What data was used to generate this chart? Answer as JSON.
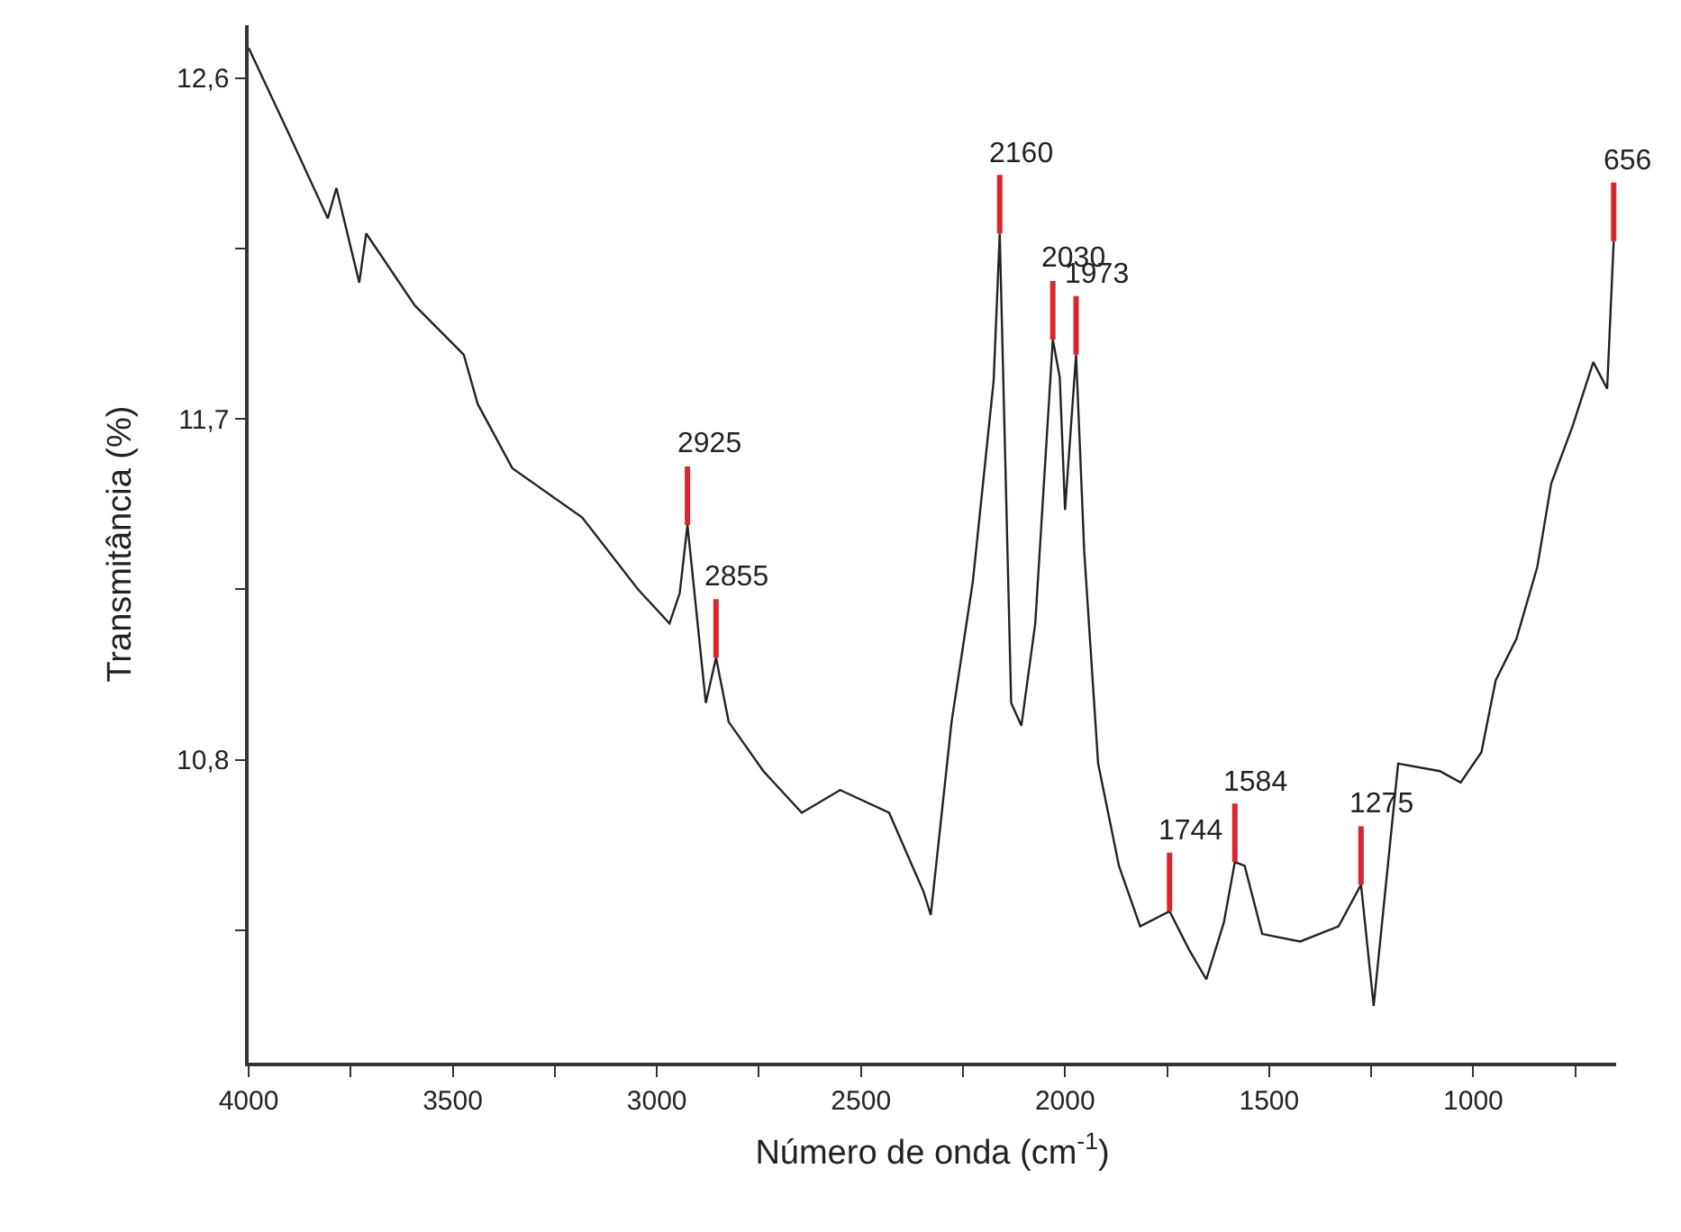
{
  "chart_data": {
    "type": "line",
    "xlabel": "Número de onda (cm$^{-1}$)",
    "ylabel": "Transmitância (%)",
    "x": [
      4000,
      3900,
      3806,
      3785,
      3729,
      3712,
      3593,
      3473,
      3439,
      3354,
      3183,
      3046,
      2969,
      2944,
      2925,
      2880,
      2855,
      2824,
      2739,
      2645,
      2551,
      2431,
      2346,
      2329,
      2278,
      2226,
      2175,
      2160,
      2132,
      2107,
      2073,
      2030,
      2013,
      2000,
      1973,
      1953,
      1919,
      1868,
      1816,
      1744,
      1697,
      1654,
      1611,
      1584,
      1560,
      1517,
      1424,
      1330,
      1275,
      1244,
      1184,
      1082,
      1031,
      980,
      945,
      894,
      843,
      809,
      757,
      706,
      672,
      656
    ],
    "series": [
      {
        "color": "#222222",
        "values": [
          12.68,
          12.45,
          12.23,
          12.31,
          12.06,
          12.19,
          12.0,
          11.87,
          11.74,
          11.57,
          11.44,
          11.25,
          11.16,
          11.24,
          11.42,
          10.95,
          11.07,
          10.9,
          10.77,
          10.66,
          10.72,
          10.66,
          10.45,
          10.39,
          10.9,
          11.27,
          11.8,
          12.19,
          10.95,
          10.89,
          11.16,
          11.91,
          11.81,
          11.46,
          11.87,
          11.35,
          10.79,
          10.52,
          10.36,
          10.4,
          10.3,
          10.22,
          10.37,
          10.53,
          10.52,
          10.34,
          10.32,
          10.36,
          10.47,
          10.15,
          10.79,
          10.77,
          10.74,
          10.82,
          11.01,
          11.12,
          11.31,
          11.53,
          11.68,
          11.85,
          11.78,
          12.17
        ]
      }
    ],
    "xlim": [
      4000,
      650
    ],
    "ylim": [
      10.0,
      12.74
    ],
    "xticks": [
      4000,
      {
        "value": 3750,
        "label": null
      },
      3500,
      {
        "value": 3250,
        "label": null
      },
      3000,
      {
        "value": 2750,
        "label": null
      },
      2500,
      {
        "value": 2250,
        "label": null
      },
      2000,
      {
        "value": 1750,
        "label": null
      },
      1500,
      {
        "value": 1250,
        "label": null
      },
      1000,
      {
        "value": 750,
        "label": null
      }
    ],
    "yticks": [
      {
        "value": 10.35,
        "label": null
      },
      {
        "value": 10.8,
        "label": "10,8"
      },
      {
        "value": 11.25,
        "label": null
      },
      {
        "value": 11.7,
        "label": "11,7"
      },
      {
        "value": 12.15,
        "label": null
      },
      {
        "value": 12.6,
        "label": "12,6"
      }
    ],
    "grid": false,
    "marker": "none",
    "line_style": "solid",
    "annotations": [
      {
        "text": "2925",
        "x": 2925,
        "y": 11.42
      },
      {
        "text": "2855",
        "x": 2855,
        "y": 11.07
      },
      {
        "text": "2160",
        "x": 2160,
        "y": 12.19
      },
      {
        "text": "2030",
        "x": 2030,
        "y": 11.91
      },
      {
        "text": "1973",
        "x": 1973,
        "y": 11.87
      },
      {
        "text": "1744",
        "x": 1744,
        "y": 10.4
      },
      {
        "text": "1584",
        "x": 1584,
        "y": 10.53
      },
      {
        "text": "1275",
        "x": 1275,
        "y": 10.47
      },
      {
        "text": "656",
        "x": 656,
        "y": 12.17
      }
    ]
  }
}
